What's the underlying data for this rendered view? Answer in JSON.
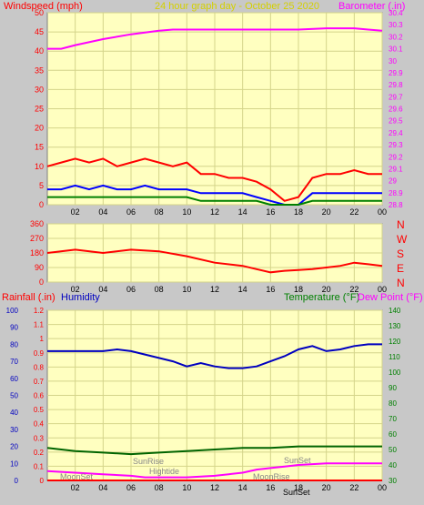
{
  "page": {
    "title": "24 hour graph day - October 25 2020",
    "background": "#c8c8c8",
    "plot_fill": "#ffffc0",
    "grid_color": "#d4d48a"
  },
  "top_panel": {
    "left_label": "Windspeed (mph)",
    "right_label": "Barometer (.in)",
    "left_color": "#ff0000",
    "right_color": "#ff00ff"
  },
  "dir_panel": {
    "compass": [
      "N",
      "W",
      "S",
      "E",
      "N"
    ]
  },
  "bottom_panel": {
    "rain_label": "Rainfall (.in)",
    "humidity_label": "Humidity",
    "temp_label": "Temperature (°F)",
    "dew_label": "Dew Point (°F)",
    "annotations": {
      "sunrise": "SunRise",
      "hightide": "Hightide",
      "moonset": "MoonSet",
      "moonrise": "MoonRise",
      "sunset_top": "SunSet",
      "sunset_axis": "SunSet"
    }
  },
  "x_ticks": [
    "02",
    "04",
    "06",
    "08",
    "10",
    "12",
    "14",
    "16",
    "18",
    "20",
    "22",
    "00"
  ],
  "chart_data": [
    {
      "type": "line",
      "name": "wind-barometer",
      "x_range_hours": [
        0,
        24
      ],
      "y_left": {
        "range": [
          0,
          50
        ],
        "ticks": [
          0,
          5,
          10,
          15,
          20,
          25,
          30,
          35,
          40,
          45,
          50
        ]
      },
      "y_right": {
        "range": [
          28.8,
          30.4
        ],
        "ticks": [
          "28.8",
          "28.9",
          "29",
          "29.1",
          "29.2",
          "29.3",
          "29.4",
          "29.5",
          "29.6",
          "29.7",
          "29.8",
          "29.9",
          "30",
          "30.1",
          "30.2",
          "30.3",
          "30.4"
        ]
      },
      "series": [
        {
          "role": "barometer",
          "color": "#ff00ff",
          "x": [
            0,
            1,
            2,
            4,
            6,
            8,
            9,
            10,
            12,
            14,
            16,
            18,
            20,
            22,
            23,
            24
          ],
          "values": [
            30.1,
            30.1,
            30.13,
            30.18,
            30.22,
            30.25,
            30.26,
            30.26,
            30.26,
            30.26,
            30.26,
            30.26,
            30.27,
            30.27,
            30.26,
            30.25
          ]
        },
        {
          "role": "wind-gust",
          "color": "#ff0000",
          "x": [
            0,
            1,
            2,
            3,
            4,
            5,
            6,
            7,
            8,
            9,
            10,
            11,
            12,
            13,
            14,
            15,
            16,
            17,
            18,
            19,
            20,
            21,
            22,
            23,
            24
          ],
          "values": [
            10,
            11,
            12,
            11,
            12,
            10,
            11,
            12,
            11,
            10,
            11,
            8,
            8,
            7,
            7,
            6,
            4,
            1,
            2,
            7,
            8,
            8,
            9,
            8,
            8
          ]
        },
        {
          "role": "wind-avg",
          "color": "#0000ff",
          "x": [
            0,
            1,
            2,
            3,
            4,
            5,
            6,
            7,
            8,
            9,
            10,
            11,
            12,
            13,
            14,
            15,
            16,
            17,
            18,
            19,
            20,
            21,
            22,
            23,
            24
          ],
          "values": [
            4,
            4,
            5,
            4,
            5,
            4,
            4,
            5,
            4,
            4,
            4,
            3,
            3,
            3,
            3,
            2,
            1,
            0,
            0,
            3,
            3,
            3,
            3,
            3,
            3
          ]
        },
        {
          "role": "wind-speed",
          "color": "#008000",
          "x": [
            0,
            1,
            2,
            3,
            4,
            5,
            6,
            7,
            8,
            9,
            10,
            11,
            12,
            13,
            14,
            15,
            16,
            17,
            18,
            19,
            20,
            21,
            22,
            23,
            24
          ],
          "values": [
            2,
            2,
            2,
            2,
            2,
            2,
            2,
            2,
            2,
            2,
            2,
            1,
            1,
            1,
            1,
            1,
            0,
            0,
            0,
            1,
            1,
            1,
            1,
            1,
            1
          ]
        }
      ]
    },
    {
      "type": "line",
      "name": "wind-direction",
      "x_range_hours": [
        0,
        24
      ],
      "y_left": {
        "range": [
          0,
          360
        ],
        "ticks": [
          0,
          90,
          180,
          270,
          360
        ]
      },
      "series": [
        {
          "role": "direction",
          "color": "#ff0000",
          "x": [
            0,
            2,
            4,
            6,
            8,
            10,
            12,
            14,
            15,
            16,
            17,
            18,
            19,
            20,
            21,
            22,
            23,
            24
          ],
          "values": [
            180,
            200,
            180,
            200,
            190,
            160,
            120,
            100,
            80,
            60,
            70,
            75,
            80,
            90,
            100,
            120,
            110,
            100
          ]
        }
      ]
    },
    {
      "type": "line",
      "name": "temp-humidity",
      "x_range_hours": [
        0,
        24
      ],
      "y_left_rain": {
        "range": [
          0,
          1.2
        ],
        "ticks": [
          "0",
          "0.1",
          "0.2",
          "0.3",
          "0.4",
          "0.5",
          "0.6",
          "0.7",
          "0.8",
          "0.9",
          "1",
          "1.1",
          "1.2"
        ]
      },
      "y_left_humidity": {
        "range": [
          0,
          100
        ],
        "ticks": [
          0,
          10,
          20,
          30,
          40,
          50,
          60,
          70,
          80,
          90,
          100
        ]
      },
      "y_right": {
        "range": [
          30,
          140
        ],
        "ticks": [
          30,
          40,
          50,
          60,
          70,
          80,
          90,
          100,
          110,
          120,
          130,
          140
        ]
      },
      "series": [
        {
          "role": "humidity",
          "color": "#0000c0",
          "x": [
            0,
            2,
            4,
            5,
            6,
            8,
            9,
            10,
            11,
            12,
            13,
            14,
            15,
            16,
            17,
            18,
            18.5,
            19,
            20,
            21,
            22,
            23,
            24
          ],
          "values": [
            76,
            76,
            76,
            77,
            76,
            72,
            70,
            67,
            69,
            67,
            66,
            66,
            67,
            70,
            73,
            77,
            78,
            79,
            76,
            77,
            79,
            80,
            80
          ]
        },
        {
          "role": "temperature",
          "color": "#006400",
          "x": [
            0,
            2,
            4,
            6,
            8,
            10,
            12,
            14,
            16,
            18,
            20,
            22,
            24
          ],
          "values": [
            51,
            49,
            48,
            47,
            48,
            49,
            50,
            51,
            51,
            52,
            52,
            52,
            52
          ]
        },
        {
          "role": "dew-point",
          "color": "#ff00ff",
          "x": [
            0,
            2,
            4,
            6,
            7,
            8,
            10,
            12,
            13,
            14,
            15,
            16,
            17,
            18,
            20,
            22,
            24
          ],
          "values": [
            36,
            35,
            34,
            33,
            32,
            32,
            32,
            33,
            34,
            35,
            37,
            38,
            39,
            40,
            41,
            41,
            41
          ]
        },
        {
          "role": "rainfall",
          "color": "#ff0000",
          "x": [
            0,
            24
          ],
          "values": [
            0,
            0
          ]
        }
      ]
    }
  ]
}
